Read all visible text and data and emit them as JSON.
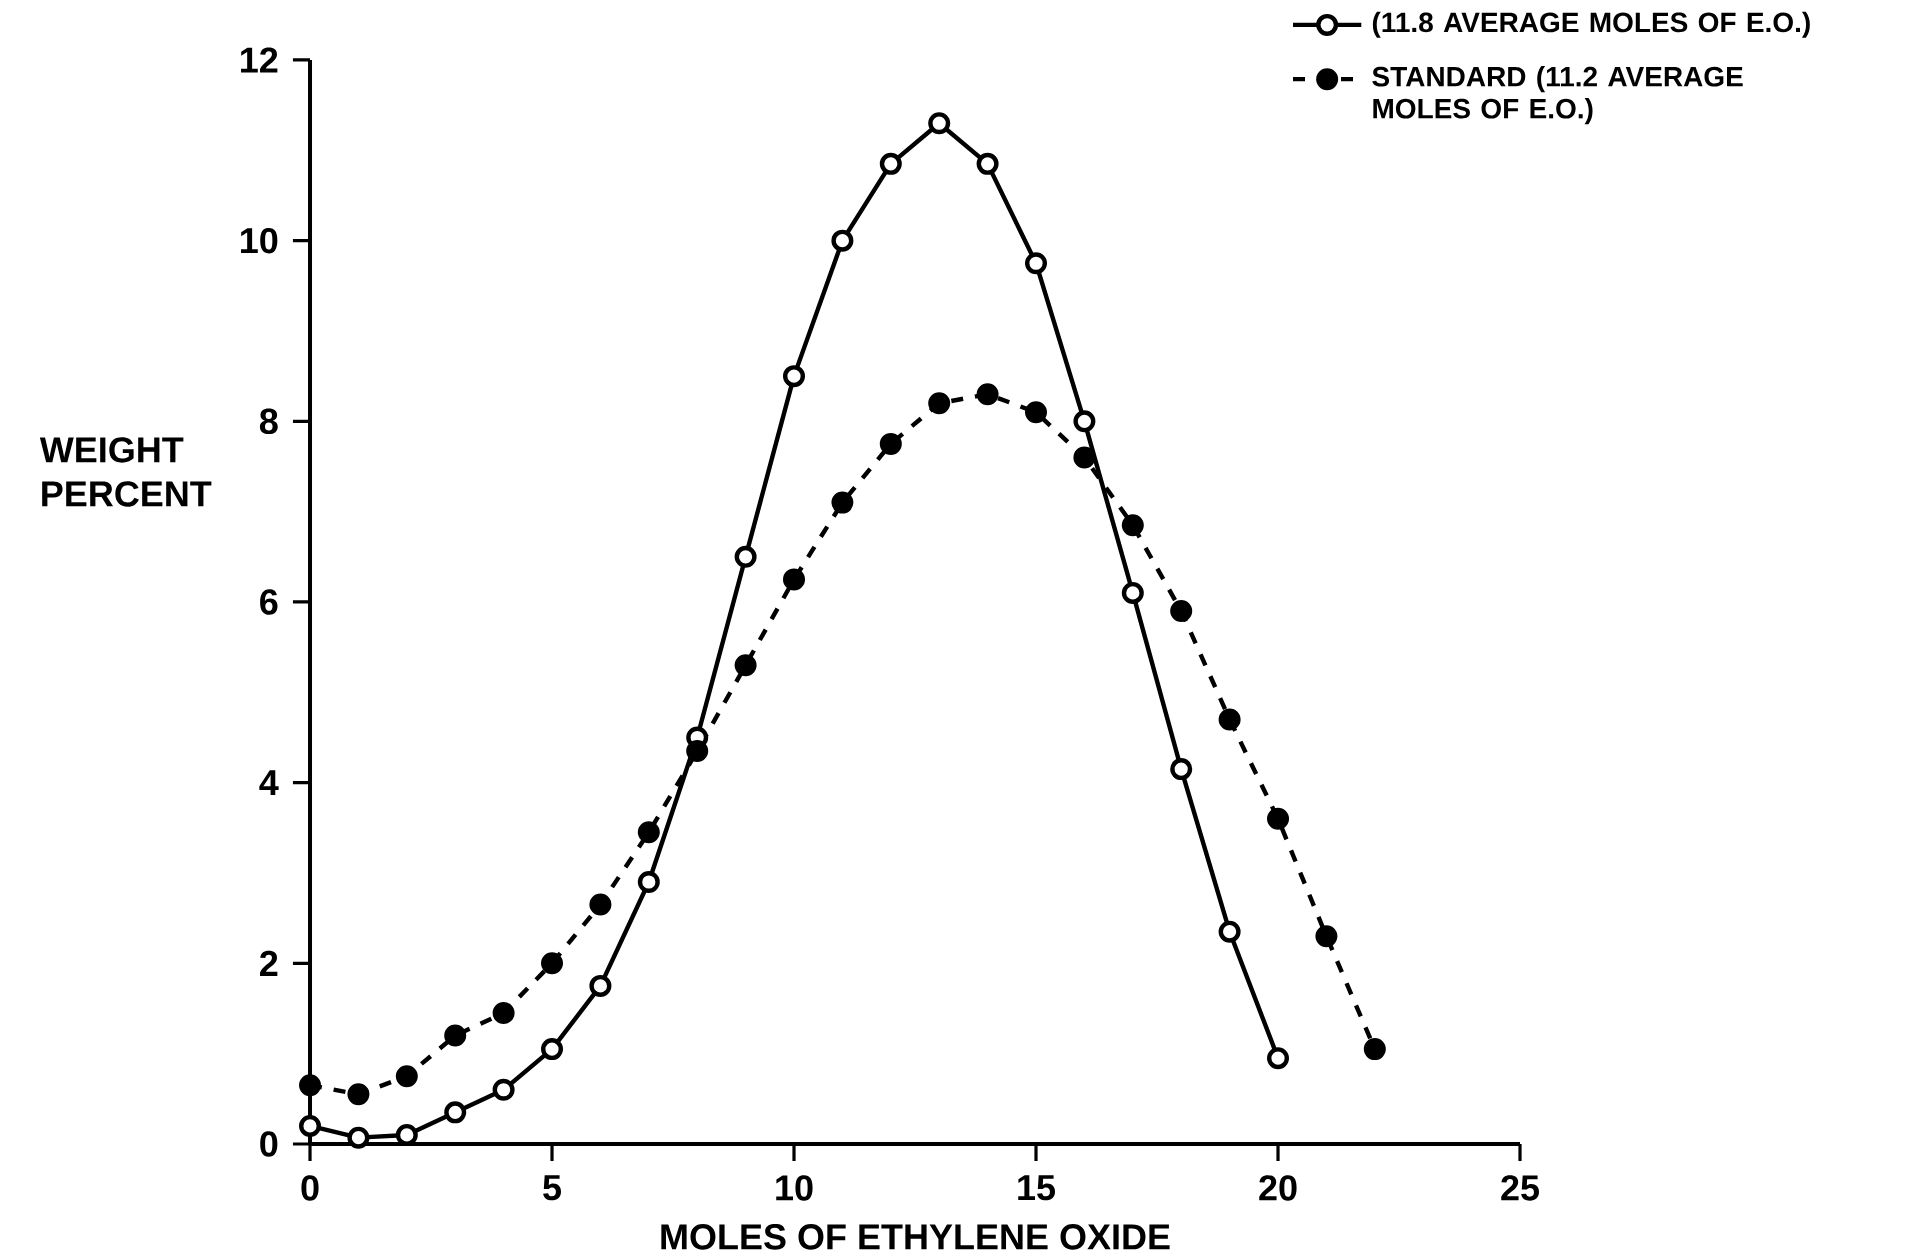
{
  "chart_data": {
    "type": "line",
    "xlabel": "MOLES OF ETHYLENE OXIDE",
    "ylabel": "WEIGHT PERCENT",
    "xlim": [
      0,
      25
    ],
    "xticks": [
      0,
      5,
      10,
      15,
      20,
      25
    ],
    "ylim": [
      0,
      12
    ],
    "yticks": [
      0,
      2,
      4,
      6,
      8,
      10,
      12
    ],
    "grid": false,
    "legend": "top right",
    "marker": "circle",
    "series": [
      {
        "name": "(11.8 AVERAGE MOLES OF E.O.)",
        "color": "#000000",
        "line_style": "solid",
        "x": [
          0,
          1,
          2,
          3,
          4,
          5,
          6,
          7,
          8,
          9,
          10,
          11,
          12,
          13,
          14,
          15,
          16,
          17,
          18,
          19,
          20
        ],
        "values": [
          0.2,
          0.07,
          0.1,
          0.35,
          0.6,
          1.05,
          1.75,
          2.9,
          4.5,
          6.5,
          8.5,
          10.0,
          10.85,
          11.3,
          10.85,
          9.75,
          8.0,
          6.1,
          4.15,
          2.35,
          0.95
        ]
      },
      {
        "name": "STANDARD (11.2 AVERAGE MOLES OF E.O.)",
        "color": "#000000",
        "line_style": "dashed",
        "x": [
          0,
          1,
          2,
          3,
          4,
          5,
          6,
          7,
          8,
          9,
          10,
          11,
          12,
          13,
          14,
          15,
          16,
          17,
          18,
          19,
          20,
          21,
          22
        ],
        "values": [
          0.65,
          0.55,
          0.75,
          1.2,
          1.45,
          2.0,
          2.65,
          3.45,
          4.35,
          5.3,
          6.25,
          7.1,
          7.75,
          8.2,
          8.3,
          8.1,
          7.6,
          6.85,
          5.9,
          4.7,
          3.6,
          2.3,
          1.05
        ]
      }
    ]
  }
}
